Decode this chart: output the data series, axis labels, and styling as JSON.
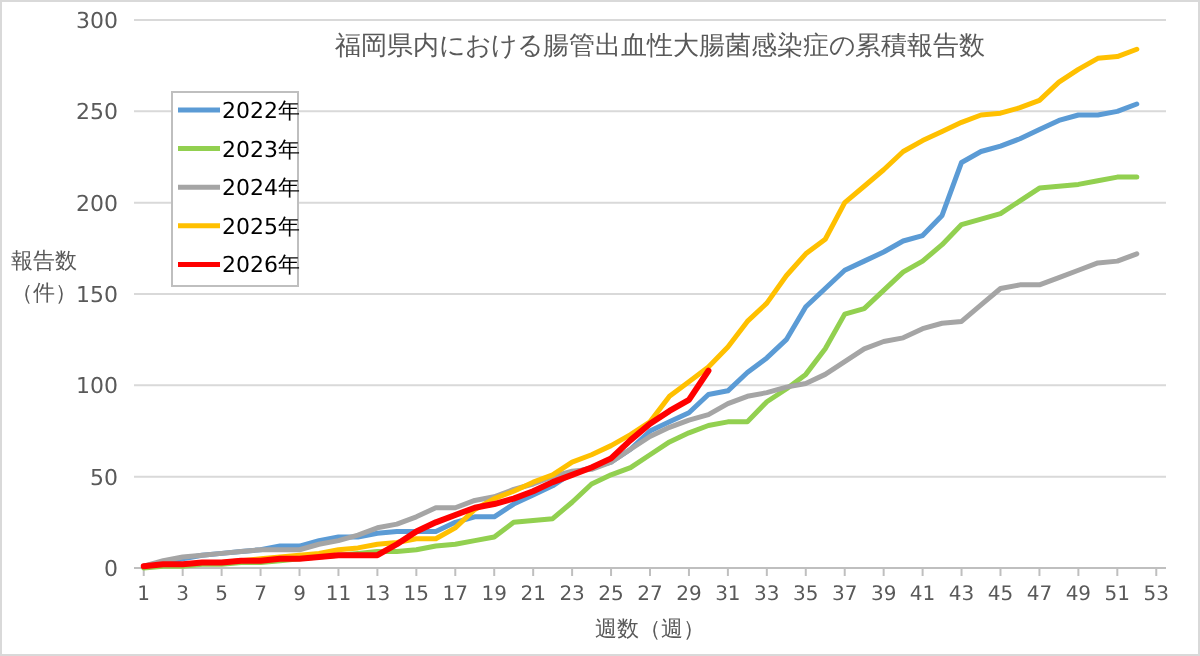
{
  "chart_data": {
    "type": "line",
    "title": "福岡県内における腸管出血性大腸菌感染症の累積報告数",
    "xlabel": "週数（週）",
    "ylabel": "報告数（件）",
    "x": [
      1,
      2,
      3,
      4,
      5,
      6,
      7,
      8,
      9,
      10,
      11,
      12,
      13,
      14,
      15,
      16,
      17,
      18,
      19,
      20,
      21,
      22,
      23,
      24,
      25,
      26,
      27,
      28,
      29,
      30,
      31,
      32,
      33,
      34,
      35,
      36,
      37,
      38,
      39,
      40,
      41,
      42,
      43,
      44,
      45,
      46,
      47,
      48,
      49,
      50,
      51,
      52
    ],
    "xlim": [
      0.5,
      53.5
    ],
    "xticks": [
      1,
      3,
      5,
      7,
      9,
      11,
      13,
      15,
      17,
      19,
      21,
      23,
      25,
      27,
      29,
      31,
      33,
      35,
      37,
      39,
      41,
      43,
      45,
      47,
      49,
      51,
      53
    ],
    "ylim": [
      0,
      300
    ],
    "yticks": [
      0,
      50,
      100,
      150,
      200,
      250,
      300
    ],
    "grid": "y",
    "legend": "top left",
    "line_style": "solid",
    "series": [
      {
        "name": "2022年",
        "color": "#5b9bd5",
        "values": [
          1,
          3,
          5,
          7,
          8,
          9,
          10,
          12,
          12,
          15,
          17,
          17,
          19,
          20,
          20,
          20,
          25,
          28,
          28,
          35,
          40,
          45,
          52,
          55,
          58,
          65,
          75,
          80,
          85,
          95,
          97,
          107,
          115,
          125,
          143,
          153,
          163,
          168,
          173,
          179,
          182,
          193,
          222,
          228,
          231,
          235,
          240,
          245,
          248,
          248,
          250,
          254
        ]
      },
      {
        "name": "2023年",
        "color": "#92d050",
        "values": [
          0,
          1,
          1,
          2,
          2,
          3,
          3,
          4,
          5,
          6,
          7,
          8,
          9,
          9,
          10,
          12,
          13,
          15,
          17,
          25,
          26,
          27,
          36,
          46,
          51,
          55,
          62,
          69,
          74,
          78,
          80,
          80,
          91,
          98,
          106,
          120,
          139,
          142,
          152,
          162,
          168,
          177,
          188,
          191,
          194,
          201,
          208,
          209,
          210,
          212,
          214,
          214
        ]
      },
      {
        "name": "2024年",
        "color": "#a5a5a5",
        "values": [
          1,
          4,
          6,
          7,
          8,
          9,
          10,
          10,
          10,
          13,
          15,
          18,
          22,
          24,
          28,
          33,
          33,
          37,
          39,
          43,
          46,
          50,
          53,
          54,
          58,
          65,
          72,
          77,
          81,
          84,
          90,
          94,
          96,
          99,
          101,
          106,
          113,
          120,
          124,
          126,
          131,
          134,
          135,
          144,
          153,
          155,
          155,
          159,
          163,
          167,
          168,
          172
        ]
      },
      {
        "name": "2025年",
        "color": "#ffc000",
        "values": [
          null,
          null,
          null,
          null,
          3,
          4,
          5,
          6,
          7,
          8,
          10,
          11,
          13,
          14,
          16,
          16,
          22,
          32,
          38,
          42,
          47,
          51,
          58,
          62,
          67,
          73,
          80,
          94,
          102,
          110,
          121,
          135,
          145,
          160,
          172,
          180,
          200,
          209,
          218,
          228,
          234,
          239,
          244,
          248,
          249,
          252,
          256,
          266,
          273,
          279,
          280,
          284
        ]
      },
      {
        "name": "2026年",
        "color": "#ff0000",
        "values": [
          1,
          2,
          2,
          3,
          3,
          4,
          4,
          5,
          5,
          6,
          7,
          7,
          7,
          13,
          20,
          25,
          29,
          33,
          35,
          38,
          42,
          47,
          51,
          55,
          60,
          70,
          79,
          86,
          92,
          108,
          null,
          null,
          null,
          null,
          null,
          null,
          null,
          null,
          null,
          null,
          null,
          null,
          null,
          null,
          null,
          null,
          null,
          null,
          null,
          null,
          null,
          null
        ]
      }
    ]
  }
}
